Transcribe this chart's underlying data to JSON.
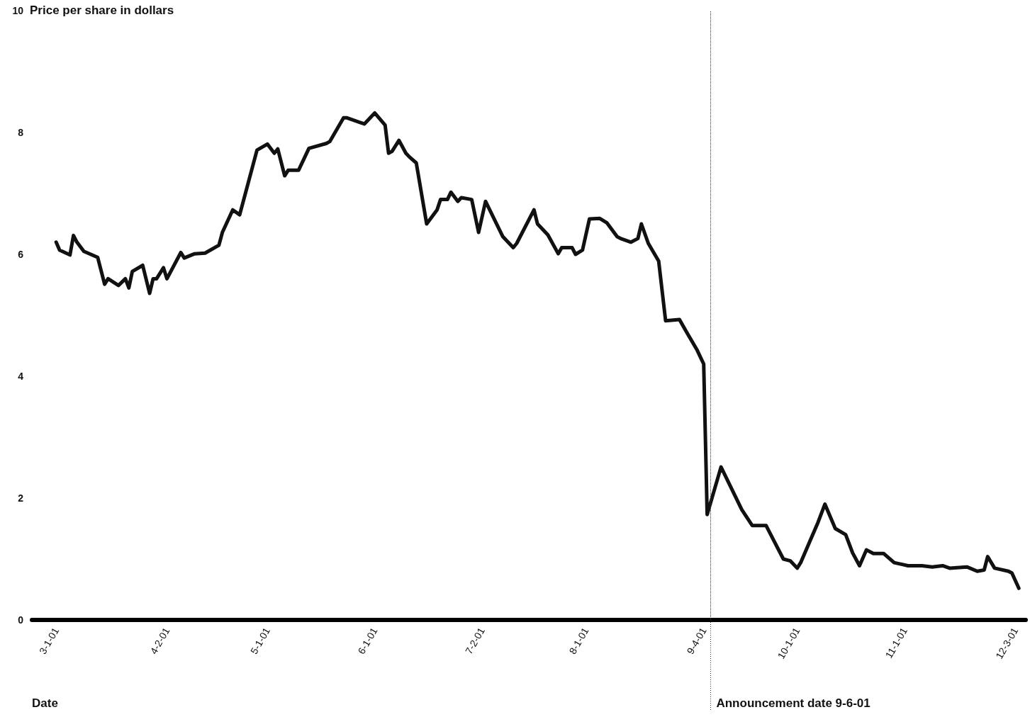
{
  "chart_data": {
    "type": "line",
    "ylabel": "Price per share in dollars",
    "xlabel": "Date",
    "x": [
      "2001-03-01",
      "2001-03-02",
      "2001-03-05",
      "2001-03-06",
      "2001-03-07",
      "2001-03-09",
      "2001-03-13",
      "2001-03-15",
      "2001-03-16",
      "2001-03-19",
      "2001-03-21",
      "2001-03-22",
      "2001-03-23",
      "2001-03-26",
      "2001-03-28",
      "2001-03-29",
      "2001-03-30",
      "2001-04-01",
      "2001-04-02",
      "2001-04-06",
      "2001-04-07",
      "2001-04-10",
      "2001-04-13",
      "2001-04-17",
      "2001-04-18",
      "2001-04-21",
      "2001-04-23",
      "2001-04-28",
      "2001-05-01",
      "2001-05-03",
      "2001-05-04",
      "2001-05-06",
      "2001-05-07",
      "2001-05-10",
      "2001-05-13",
      "2001-05-18",
      "2001-05-19",
      "2001-05-23",
      "2001-05-24",
      "2001-05-29",
      "2001-06-01",
      "2001-06-04",
      "2001-06-05",
      "2001-06-06",
      "2001-06-08",
      "2001-06-10",
      "2001-06-11",
      "2001-06-13",
      "2001-06-16",
      "2001-06-19",
      "2001-06-20",
      "2001-06-22",
      "2001-06-23",
      "2001-06-25",
      "2001-06-26",
      "2001-06-29",
      "2001-07-01",
      "2001-07-03",
      "2001-07-08",
      "2001-07-11",
      "2001-07-12",
      "2001-07-17",
      "2001-07-18",
      "2001-07-21",
      "2001-07-24",
      "2001-07-25",
      "2001-07-28",
      "2001-07-29",
      "2001-07-31",
      "2001-08-02",
      "2001-08-05",
      "2001-08-07",
      "2001-08-10",
      "2001-08-11",
      "2001-08-14",
      "2001-08-16",
      "2001-08-17",
      "2001-08-19",
      "2001-08-22",
      "2001-08-24",
      "2001-08-28",
      "2001-08-30",
      "2001-09-02",
      "2001-09-04",
      "2001-09-05",
      "2001-09-09",
      "2001-09-15",
      "2001-09-18",
      "2001-09-22",
      "2001-09-27",
      "2001-09-29",
      "2001-10-01",
      "2001-10-02",
      "2001-10-07",
      "2001-10-09",
      "2001-10-12",
      "2001-10-15",
      "2001-10-17",
      "2001-10-19",
      "2001-10-21",
      "2001-10-23",
      "2001-10-26",
      "2001-10-29",
      "2001-11-02",
      "2001-11-06",
      "2001-11-09",
      "2001-11-12",
      "2001-11-14",
      "2001-11-19",
      "2001-11-22",
      "2001-11-24",
      "2001-11-25",
      "2001-11-27",
      "2001-12-01",
      "2001-12-02",
      "2001-12-04"
    ],
    "series": [
      {
        "color": "#111111",
        "values": [
          6.2,
          6.07,
          5.99,
          6.31,
          6.2,
          6.05,
          5.95,
          5.51,
          5.6,
          5.49,
          5.6,
          5.45,
          5.72,
          5.82,
          5.36,
          5.6,
          5.6,
          5.78,
          5.6,
          6.03,
          5.94,
          6.01,
          6.02,
          6.15,
          6.36,
          6.73,
          6.65,
          7.71,
          7.81,
          7.66,
          7.73,
          7.29,
          7.38,
          7.38,
          7.74,
          7.82,
          7.85,
          8.24,
          8.24,
          8.14,
          8.32,
          8.12,
          7.66,
          7.69,
          7.87,
          7.66,
          7.6,
          7.5,
          6.5,
          6.73,
          6.9,
          6.9,
          7.02,
          6.87,
          6.93,
          6.9,
          6.36,
          6.87,
          6.29,
          6.11,
          6.18,
          6.73,
          6.5,
          6.32,
          6.01,
          6.11,
          6.11,
          6.0,
          6.07,
          6.58,
          6.59,
          6.52,
          6.29,
          6.26,
          6.2,
          6.26,
          6.5,
          6.18,
          5.89,
          4.91,
          4.93,
          4.73,
          4.44,
          4.2,
          1.73,
          2.51,
          1.81,
          1.55,
          1.55,
          1.0,
          0.97,
          0.85,
          0.94,
          1.6,
          1.9,
          1.5,
          1.4,
          1.1,
          0.89,
          1.15,
          1.09,
          1.09,
          0.94,
          0.89,
          0.89,
          0.87,
          0.89,
          0.85,
          0.87,
          0.8,
          0.82,
          1.04,
          0.85,
          0.8,
          0.77,
          0.52
        ]
      }
    ],
    "xlim": [
      "2001-02-22",
      "2001-12-06"
    ],
    "xticks": [
      {
        "value": "2001-03-01",
        "label": "3-1-01"
      },
      {
        "value": "2001-04-02",
        "label": "4-2-01"
      },
      {
        "value": "2001-05-01",
        "label": "5-1-01"
      },
      {
        "value": "2001-06-01",
        "label": "6-1-01"
      },
      {
        "value": "2001-07-02",
        "label": "7-2-01"
      },
      {
        "value": "2001-08-01",
        "label": "8-1-01"
      },
      {
        "value": "2001-09-04",
        "label": "9-4-01"
      },
      {
        "value": "2001-10-01",
        "label": "10-1-01"
      },
      {
        "value": "2001-11-01",
        "label": "11-1-01"
      },
      {
        "value": "2001-12-03",
        "label": "12-3-01"
      }
    ],
    "ylim": [
      0,
      10
    ],
    "yticks": [
      0,
      2,
      4,
      6,
      8,
      10
    ],
    "ref_lines": [
      {
        "axis": "x",
        "value": "2001-09-06",
        "label": "Announcement date 9-6-01",
        "color": "#333333",
        "line_style": "dotted"
      }
    ],
    "grid": false,
    "marker": "none",
    "line_style": "solid"
  }
}
